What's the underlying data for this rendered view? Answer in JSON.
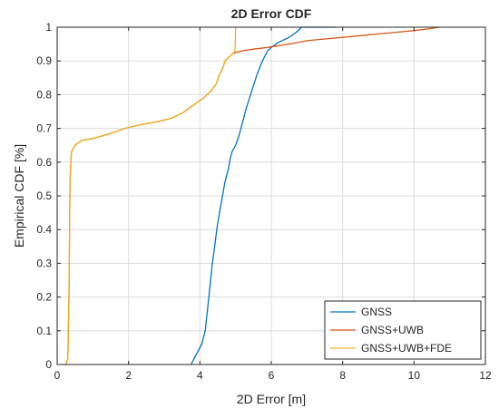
{
  "chart_data": {
    "type": "line",
    "title": "2D Error CDF",
    "xlabel": "2D Error [m]",
    "ylabel": "Empirical CDF [%]",
    "xlim": [
      0,
      12
    ],
    "ylim": [
      0,
      1
    ],
    "xticks": [
      0,
      2,
      4,
      6,
      8,
      10,
      12
    ],
    "xtick_labels": [
      "0",
      "2",
      "4",
      "6",
      "8",
      "10",
      "12"
    ],
    "yticks": [
      0,
      0.1,
      0.2,
      0.3,
      0.4,
      0.5,
      0.6,
      0.7,
      0.8,
      0.9,
      1
    ],
    "ytick_labels": [
      "0",
      "0.1",
      "0.2",
      "0.3",
      "0.4",
      "0.5",
      "0.6",
      "0.7",
      "0.8",
      "0.9",
      "1"
    ],
    "grid": true,
    "legend_position": "bottom-right",
    "series": [
      {
        "name": "GNSS",
        "color": "#0072BD",
        "x": [
          3.75,
          3.8,
          3.9,
          4.05,
          4.15,
          4.2,
          4.25,
          4.3,
          4.35,
          4.4,
          4.45,
          4.5,
          4.55,
          4.6,
          4.65,
          4.7,
          4.75,
          4.8,
          4.85,
          4.9,
          5.0,
          5.1,
          5.2,
          5.3,
          5.45,
          5.6,
          5.75,
          5.9,
          6.0,
          6.2,
          6.5,
          6.7,
          6.85,
          7.2,
          7.8
        ],
        "y": [
          0.0,
          0.01,
          0.03,
          0.06,
          0.1,
          0.15,
          0.2,
          0.25,
          0.3,
          0.34,
          0.38,
          0.42,
          0.45,
          0.48,
          0.51,
          0.54,
          0.56,
          0.58,
          0.61,
          0.63,
          0.65,
          0.68,
          0.72,
          0.76,
          0.81,
          0.86,
          0.9,
          0.93,
          0.94,
          0.955,
          0.97,
          0.985,
          1.0,
          1.0,
          1.0
        ]
      },
      {
        "name": "GNSS+UWB",
        "color": "#D95319",
        "x": [
          0.25,
          0.3,
          0.33,
          0.36,
          0.4,
          0.5,
          0.7,
          1.0,
          1.5,
          1.9,
          2.3,
          2.8,
          3.2,
          3.5,
          3.7,
          3.9,
          4.1,
          4.3,
          4.45,
          4.55,
          4.65,
          4.7,
          4.8,
          4.9,
          5.0,
          5.2,
          5.5,
          5.9,
          6.5,
          7.0,
          7.5,
          8.0,
          8.5,
          9.0,
          9.5,
          10.0,
          10.4,
          10.7
        ],
        "y": [
          0.0,
          0.02,
          0.2,
          0.55,
          0.63,
          0.65,
          0.665,
          0.67,
          0.685,
          0.7,
          0.71,
          0.72,
          0.73,
          0.745,
          0.76,
          0.775,
          0.79,
          0.81,
          0.83,
          0.86,
          0.88,
          0.9,
          0.91,
          0.92,
          0.925,
          0.93,
          0.935,
          0.94,
          0.95,
          0.96,
          0.965,
          0.97,
          0.975,
          0.98,
          0.985,
          0.99,
          0.995,
          1.0
        ]
      },
      {
        "name": "GNSS+UWB+FDE",
        "color": "#EDB120",
        "x": [
          0.25,
          0.3,
          0.33,
          0.36,
          0.4,
          0.5,
          0.7,
          1.0,
          1.5,
          1.9,
          2.3,
          2.8,
          3.2,
          3.5,
          3.7,
          3.9,
          4.1,
          4.3,
          4.45,
          4.55,
          4.65,
          4.7,
          4.8,
          4.9,
          4.96,
          4.98,
          4.99,
          5.0
        ],
        "y": [
          0.0,
          0.02,
          0.2,
          0.55,
          0.63,
          0.65,
          0.665,
          0.67,
          0.685,
          0.7,
          0.71,
          0.72,
          0.73,
          0.745,
          0.76,
          0.775,
          0.79,
          0.81,
          0.83,
          0.86,
          0.88,
          0.9,
          0.91,
          0.92,
          0.925,
          0.93,
          0.95,
          1.0
        ]
      }
    ]
  }
}
